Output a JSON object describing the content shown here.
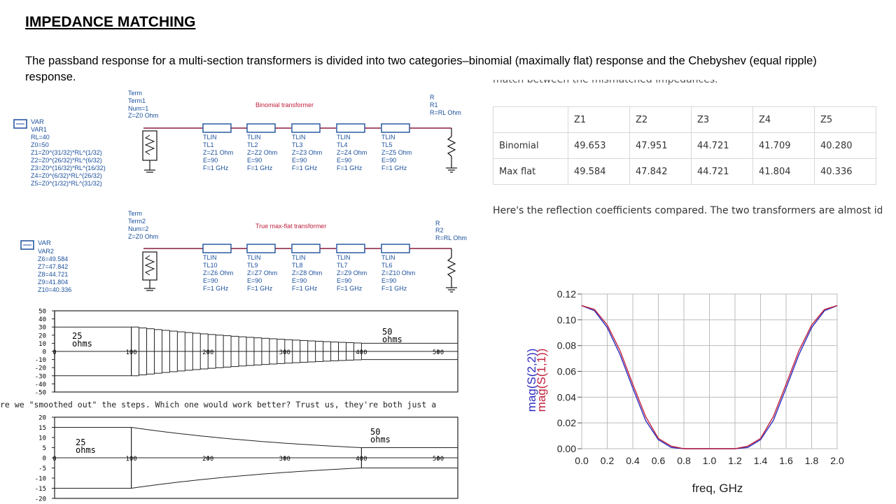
{
  "slide": {
    "title": "IMPEDANCE MATCHING",
    "intro": "The passband response for a multi-section transformers is divided into two categories–binomial (maximally flat) response and the Chebyshev (equal ripple) response."
  },
  "schematic1": {
    "term": [
      "Term",
      "Term1",
      "Num=1",
      "Z=Z0 Ohm"
    ],
    "title": "Binomial transformer",
    "r": [
      "R",
      "R1",
      "R=RL Ohm"
    ],
    "var": [
      "VAR",
      "VAR1",
      "RL=40",
      "Z0=50",
      "Z1=Z0^(31/32)*RL^(1/32)",
      "Z2=Z0^(26/32)*RL^(6/32)",
      "Z3=Z0^(16/32)*RL^(16/32)",
      "Z4=Z0^(6/32)*RL^(26/32)",
      "Z5=Z0^(1/32)*RL^(31/32)"
    ],
    "tlines": [
      [
        "TLIN",
        "TL1",
        "Z=Z1 Ohm",
        "E=90",
        "F=1 GHz"
      ],
      [
        "TLIN",
        "TL2",
        "Z=Z2 Ohm",
        "E=90",
        "F=1 GHz"
      ],
      [
        "TLIN",
        "TL3",
        "Z=Z3 Ohm",
        "E=90",
        "F=1 GHz"
      ],
      [
        "TLIN",
        "TL4",
        "Z=Z4 Ohm",
        "E=90",
        "F=1 GHz"
      ],
      [
        "TLIN",
        "TL5",
        "Z=Z5 Ohm",
        "E=90",
        "F=1 GHz"
      ]
    ]
  },
  "schematic2": {
    "term": [
      "Term",
      "Term2",
      "Num=2",
      "Z=Z0 Ohm"
    ],
    "title": "True max-flat transformer",
    "r": [
      "R",
      "R2",
      "R=RL Ohm"
    ],
    "var": [
      "VAR",
      "VAR2",
      "Z6=49.584",
      "Z7=47.842",
      "Z8=44.721",
      "Z9=41.804",
      "Z10=40.336"
    ],
    "tlines": [
      [
        "TLIN",
        "TL10",
        "Z=Z6 Ohm",
        "E=90",
        "F=1 GHz"
      ],
      [
        "TLIN",
        "TL9",
        "Z=Z7 Ohm",
        "E=90",
        "F=1 GHz"
      ],
      [
        "TLIN",
        "TL8",
        "Z=Z8 Ohm",
        "E=90",
        "F=1 GHz"
      ],
      [
        "TLIN",
        "TL7",
        "Z=Z9 Ohm",
        "E=90",
        "F=1 GHz"
      ],
      [
        "TLIN",
        "TL6",
        "Z=Z10 Ohm",
        "E=90",
        "F=1 GHz"
      ]
    ]
  },
  "clipped_line": "match between the mismatched impedances.",
  "impedance_table": {
    "headers": [
      "",
      "Z1",
      "Z2",
      "Z3",
      "Z4",
      "Z5"
    ],
    "rows": [
      [
        "Binomial",
        "49.653",
        "47.951",
        "44.721",
        "41.709",
        "40.280"
      ],
      [
        "Max flat",
        "49.584",
        "47.842",
        "44.721",
        "41.804",
        "40.336"
      ]
    ]
  },
  "compare_text": "Here's the reflection coefficients compared. The two transformers are almost identical, bu advantage in bandwidth.",
  "taper1": {
    "yticks": [
      "50",
      "40",
      "30",
      "20",
      "10",
      "0",
      "-10",
      "-20",
      "-30",
      "-40",
      "-50"
    ],
    "xticks": [
      "0",
      "100",
      "200",
      "300",
      "400",
      "500"
    ],
    "left_label": [
      "25",
      "ohms"
    ],
    "right_label": [
      "50",
      "ohms"
    ]
  },
  "steps_caption": "re we \"smoothed out\" the steps. Which one would work better? Trust us, they're both just a",
  "taper2": {
    "yticks": [
      "20",
      "15",
      "10",
      "5",
      "0",
      "-5",
      "-10",
      "-15",
      "-20"
    ],
    "xticks": [
      "0",
      "100",
      "200",
      "300",
      "400",
      "500"
    ],
    "left_label": [
      "25",
      "ohms"
    ],
    "right_label": [
      "50",
      "ohms"
    ]
  },
  "chart_data": {
    "type": "line",
    "xlabel": "freq, GHz",
    "ylabels": [
      "mag(S(2,2))",
      "mag(S(1,1))"
    ],
    "xlim": [
      0,
      2
    ],
    "ylim": [
      0,
      0.12
    ],
    "xticks": [
      "0.0",
      "0.2",
      "0.4",
      "0.6",
      "0.8",
      "1.0",
      "1.2",
      "1.4",
      "1.6",
      "1.8",
      "2.0"
    ],
    "yticks": [
      "0.00",
      "0.02",
      "0.04",
      "0.06",
      "0.08",
      "0.10",
      "0.12"
    ],
    "grid": true,
    "colors": {
      "s22": "#2b2bbf",
      "s11": "#c0203c"
    },
    "series": [
      {
        "name": "mag(S(2,2))",
        "x": [
          0,
          0.1,
          0.2,
          0.3,
          0.4,
          0.5,
          0.6,
          0.7,
          0.8,
          0.9,
          1.0,
          1.1,
          1.2,
          1.3,
          1.4,
          1.5,
          1.6,
          1.7,
          1.8,
          1.9,
          2.0
        ],
        "values": [
          0.111,
          0.107,
          0.094,
          0.073,
          0.047,
          0.022,
          0.007,
          0.001,
          0.0,
          0.0,
          0.0,
          0.0,
          0.0,
          0.001,
          0.007,
          0.022,
          0.047,
          0.073,
          0.094,
          0.107,
          0.111
        ]
      },
      {
        "name": "mag(S(1,1))",
        "x": [
          0,
          0.1,
          0.2,
          0.3,
          0.4,
          0.5,
          0.6,
          0.7,
          0.8,
          0.9,
          1.0,
          1.1,
          1.2,
          1.3,
          1.4,
          1.5,
          1.6,
          1.7,
          1.8,
          1.9,
          2.0
        ],
        "values": [
          0.111,
          0.108,
          0.096,
          0.076,
          0.05,
          0.025,
          0.008,
          0.002,
          0.0,
          0.0,
          0.0,
          0.0,
          0.0,
          0.002,
          0.008,
          0.025,
          0.05,
          0.076,
          0.096,
          0.108,
          0.111
        ]
      }
    ]
  }
}
